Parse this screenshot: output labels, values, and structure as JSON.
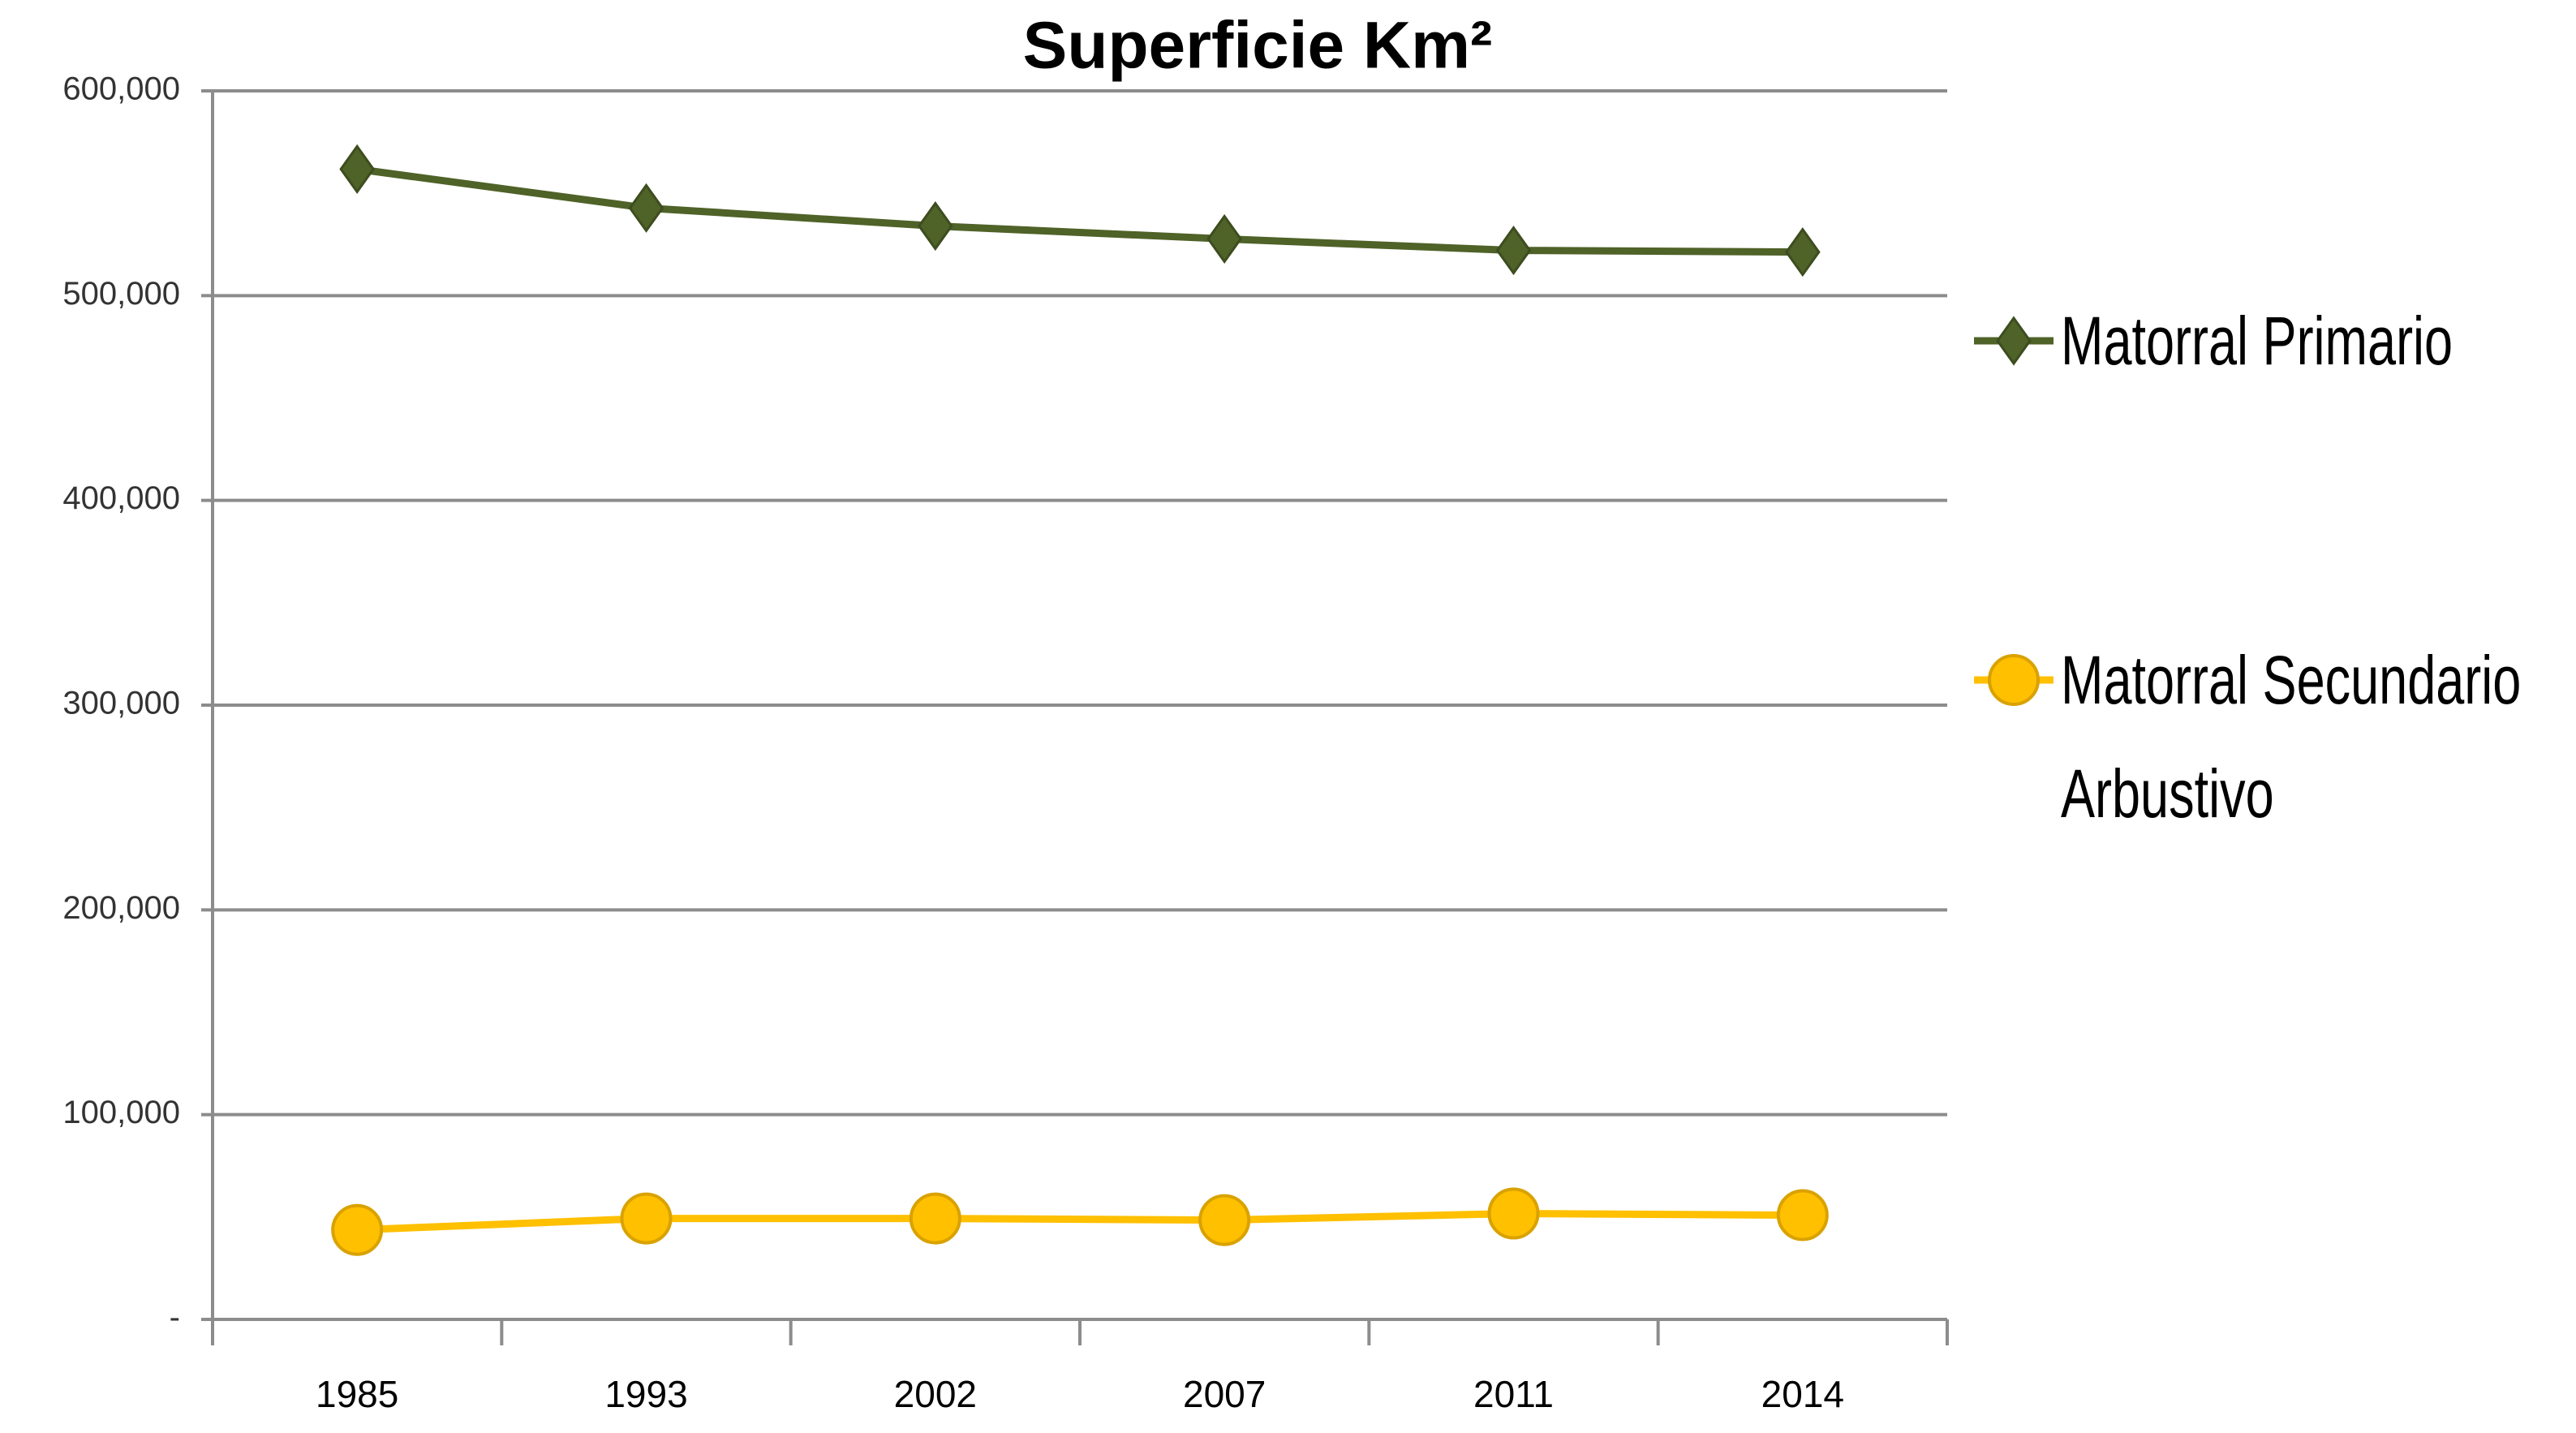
{
  "chart_data": {
    "type": "line",
    "title": "Superficie Km²",
    "categories": [
      "1985",
      "1993",
      "2002",
      "2007",
      "2011",
      "2014"
    ],
    "series": [
      {
        "name": "Matorral Primario",
        "color": "#4f6228",
        "marker": "diamond",
        "values": [
          561800,
          542800,
          534000,
          527700,
          522100,
          521300
        ]
      },
      {
        "name": "Matorral Secundario Arbustivo",
        "color": "#ffc000",
        "marker": "circle",
        "values": [
          43700,
          49300,
          49300,
          48500,
          51700,
          50900
        ]
      }
    ],
    "ylim": [
      0,
      600000
    ],
    "yticks": [
      {
        "value": 0,
        "label": "-"
      },
      {
        "value": 100000,
        "label": "100,000"
      },
      {
        "value": 200000,
        "label": "200,000"
      },
      {
        "value": 300000,
        "label": "300,000"
      },
      {
        "value": 400000,
        "label": "400,000"
      },
      {
        "value": 500000,
        "label": "500,000"
      },
      {
        "value": 600000,
        "label": "600,000"
      }
    ],
    "grid": true,
    "legend": "right"
  }
}
